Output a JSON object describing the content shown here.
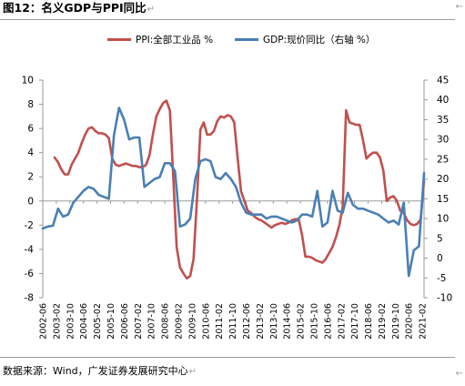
{
  "title": "图12：名义GDP与PPI同比",
  "source": "数据来源：Wind，广发证券发展研究中心",
  "chart_data": {
    "type": "line",
    "title": "图12：名义GDP与PPI同比",
    "xlabel": "",
    "ylabel": "",
    "ylim": [
      -8,
      10
    ],
    "y2lim": [
      -10,
      45
    ],
    "yticks": [
      -8,
      -6,
      -4,
      -2,
      0,
      2,
      4,
      6,
      8,
      10
    ],
    "y2ticks": [
      -10,
      -5,
      0,
      5,
      10,
      15,
      20,
      25,
      30,
      35,
      40,
      45
    ],
    "grid": false,
    "legend_position": "top",
    "x_tick_labels": [
      "2002-06",
      "2003-02",
      "2003-10",
      "2004-06",
      "2005-02",
      "2005-10",
      "2006-06",
      "2007-02",
      "2007-10",
      "2008-06",
      "2009-02",
      "2009-10",
      "2010-06",
      "2011-02",
      "2011-10",
      "2012-06",
      "2013-02",
      "2013-10",
      "2014-06",
      "2015-02",
      "2015-10",
      "2016-06",
      "2017-02",
      "2017-10",
      "2018-06",
      "2019-02",
      "2019-10",
      "2020-06",
      "2021-02"
    ],
    "series": [
      {
        "name": "PPI:全部工业品 %",
        "color": "#c0504d",
        "axis": "left",
        "x": [
          "2003-01",
          "2003-03",
          "2003-05",
          "2003-07",
          "2003-09",
          "2003-11",
          "2004-01",
          "2004-03",
          "2004-05",
          "2004-07",
          "2004-09",
          "2004-11",
          "2005-01",
          "2005-03",
          "2005-05",
          "2005-07",
          "2005-09",
          "2005-11",
          "2006-01",
          "2006-03",
          "2006-05",
          "2006-07",
          "2006-09",
          "2006-11",
          "2007-01",
          "2007-03",
          "2007-05",
          "2007-07",
          "2007-09",
          "2007-11",
          "2008-01",
          "2008-03",
          "2008-05",
          "2008-07",
          "2008-09",
          "2008-11",
          "2009-01",
          "2009-03",
          "2009-05",
          "2009-07",
          "2009-09",
          "2009-11",
          "2010-01",
          "2010-03",
          "2010-05",
          "2010-07",
          "2010-09",
          "2010-11",
          "2011-01",
          "2011-03",
          "2011-05",
          "2011-07",
          "2011-09",
          "2011-11",
          "2012-01",
          "2012-03",
          "2012-05",
          "2012-07",
          "2012-09",
          "2012-11",
          "2013-01",
          "2013-03",
          "2013-05",
          "2013-07",
          "2013-09",
          "2013-11",
          "2014-01",
          "2014-03",
          "2014-05",
          "2014-07",
          "2014-09",
          "2014-11",
          "2015-01",
          "2015-03",
          "2015-05",
          "2015-07",
          "2015-09",
          "2015-11",
          "2016-01",
          "2016-03",
          "2016-05",
          "2016-07",
          "2016-09",
          "2016-11",
          "2017-01",
          "2017-03",
          "2017-05",
          "2017-07",
          "2017-09",
          "2017-11",
          "2018-01",
          "2018-03",
          "2018-05",
          "2018-07",
          "2018-09",
          "2018-11",
          "2019-01",
          "2019-03",
          "2019-05",
          "2019-07",
          "2019-09",
          "2019-11",
          "2020-01",
          "2020-03",
          "2020-05",
          "2020-07",
          "2020-09",
          "2020-11",
          "2021-01",
          "2021-03"
        ],
        "values": [
          3.6,
          3.2,
          2.6,
          2.2,
          2.2,
          3.0,
          3.5,
          4.0,
          4.8,
          5.5,
          6.0,
          6.1,
          5.8,
          5.6,
          5.6,
          5.5,
          5.2,
          3.5,
          3.0,
          2.9,
          3.0,
          3.1,
          3.0,
          2.9,
          2.9,
          2.8,
          2.8,
          3.0,
          3.8,
          5.5,
          7.0,
          7.6,
          8.1,
          8.3,
          7.5,
          2.0,
          -3.8,
          -5.5,
          -6.0,
          -6.4,
          -6.2,
          -4.8,
          0.2,
          5.9,
          6.5,
          5.5,
          5.5,
          5.8,
          6.6,
          7.0,
          6.9,
          7.1,
          7.0,
          6.5,
          3.5,
          0.8,
          0.0,
          -0.8,
          -1.0,
          -1.3,
          -1.5,
          -1.6,
          -1.8,
          -2.0,
          -2.2,
          -2.0,
          -1.9,
          -1.8,
          -1.9,
          -1.8,
          -1.6,
          -1.5,
          -1.5,
          -2.8,
          -4.6,
          -4.6,
          -4.7,
          -4.9,
          -5.0,
          -5.1,
          -4.8,
          -4.3,
          -3.8,
          -3.0,
          -2.0,
          -0.5,
          7.5,
          6.5,
          6.4,
          6.3,
          6.3,
          5.0,
          3.5,
          3.8,
          4.0,
          4.0,
          3.6,
          2.5,
          0.0,
          0.3,
          0.4,
          0.0,
          -0.8,
          -1.0,
          -1.6,
          -1.9,
          -2.0,
          -1.9,
          -1.5,
          1.7
        ]
      },
      {
        "name": "GDP:现价同比（右轴 %）",
        "color": "#4a7fb5",
        "axis": "right",
        "x": [
          "2002-06",
          "2002-09",
          "2002-12",
          "2003-03",
          "2003-06",
          "2003-09",
          "2003-12",
          "2004-03",
          "2004-06",
          "2004-09",
          "2004-12",
          "2005-03",
          "2005-06",
          "2005-09",
          "2005-12",
          "2006-03",
          "2006-06",
          "2006-09",
          "2006-12",
          "2007-03",
          "2007-06",
          "2007-09",
          "2007-12",
          "2008-03",
          "2008-06",
          "2008-09",
          "2008-12",
          "2009-03",
          "2009-06",
          "2009-09",
          "2009-12",
          "2010-03",
          "2010-06",
          "2010-09",
          "2010-12",
          "2011-03",
          "2011-06",
          "2011-09",
          "2011-12",
          "2012-03",
          "2012-06",
          "2012-09",
          "2012-12",
          "2013-03",
          "2013-06",
          "2013-09",
          "2013-12",
          "2014-03",
          "2014-06",
          "2014-09",
          "2014-12",
          "2015-03",
          "2015-06",
          "2015-09",
          "2015-12",
          "2016-03",
          "2016-06",
          "2016-09",
          "2016-12",
          "2017-03",
          "2017-06",
          "2017-09",
          "2017-12",
          "2018-03",
          "2018-06",
          "2018-09",
          "2018-12",
          "2019-03",
          "2019-06",
          "2019-09",
          "2019-12",
          "2020-03",
          "2020-06",
          "2020-09",
          "2020-12",
          "2021-03"
        ],
        "values": [
          7.5,
          8.0,
          8.2,
          12.5,
          10.5,
          11.0,
          14.0,
          15.5,
          17.0,
          18.0,
          17.5,
          16.0,
          15.5,
          15.0,
          31.0,
          38.0,
          35.0,
          30.0,
          30.5,
          30.5,
          18.0,
          19.0,
          20.0,
          20.5,
          24.0,
          24.0,
          22.0,
          8.0,
          8.5,
          10.0,
          20.0,
          24.5,
          25.0,
          24.5,
          20.5,
          20.0,
          21.5,
          20.0,
          18.0,
          14.0,
          11.5,
          11.0,
          11.0,
          11.0,
          10.0,
          10.5,
          10.5,
          10.0,
          9.5,
          9.0,
          9.5,
          11.0,
          11.0,
          10.5,
          17.0,
          8.0,
          9.0,
          17.0,
          12.0,
          11.5,
          16.5,
          13.5,
          12.5,
          12.5,
          12.0,
          11.5,
          11.0,
          10.0,
          9.0,
          9.5,
          8.5,
          14.0,
          -4.5,
          2.0,
          3.0,
          21.5
        ]
      }
    ]
  }
}
